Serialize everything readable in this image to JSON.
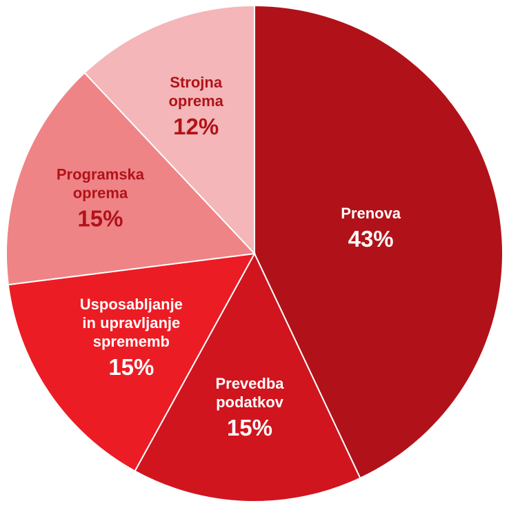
{
  "chart_data": {
    "type": "pie",
    "title": "",
    "start_angle_deg": 0,
    "direction": "clockwise",
    "slices": [
      {
        "name": "Prenova",
        "name_lines": [
          "Prenova"
        ],
        "value": 43,
        "value_label": "43%",
        "color": "#b11219",
        "text_color": "#ffffff"
      },
      {
        "name": "Prevedba podatkov",
        "name_lines": [
          "Prevedba",
          "podatkov"
        ],
        "value": 15,
        "value_label": "15%",
        "color": "#d0151f",
        "text_color": "#ffffff"
      },
      {
        "name": "Usposabljanje in upravljanje sprememb",
        "name_lines": [
          "Usposabljanje",
          "in upravljanje",
          "sprememb"
        ],
        "value": 15,
        "value_label": "15%",
        "color": "#ec1c24",
        "text_color": "#ffffff"
      },
      {
        "name": "Programska oprema",
        "name_lines": [
          "Programska",
          "oprema"
        ],
        "value": 15,
        "value_label": "15%",
        "color": "#ee8486",
        "text_color": "#b11219"
      },
      {
        "name": "Strojna oprema",
        "name_lines": [
          "Strojna",
          "oprema"
        ],
        "value": 12,
        "value_label": "12%",
        "color": "#f4b6b8",
        "text_color": "#b11219"
      }
    ]
  }
}
